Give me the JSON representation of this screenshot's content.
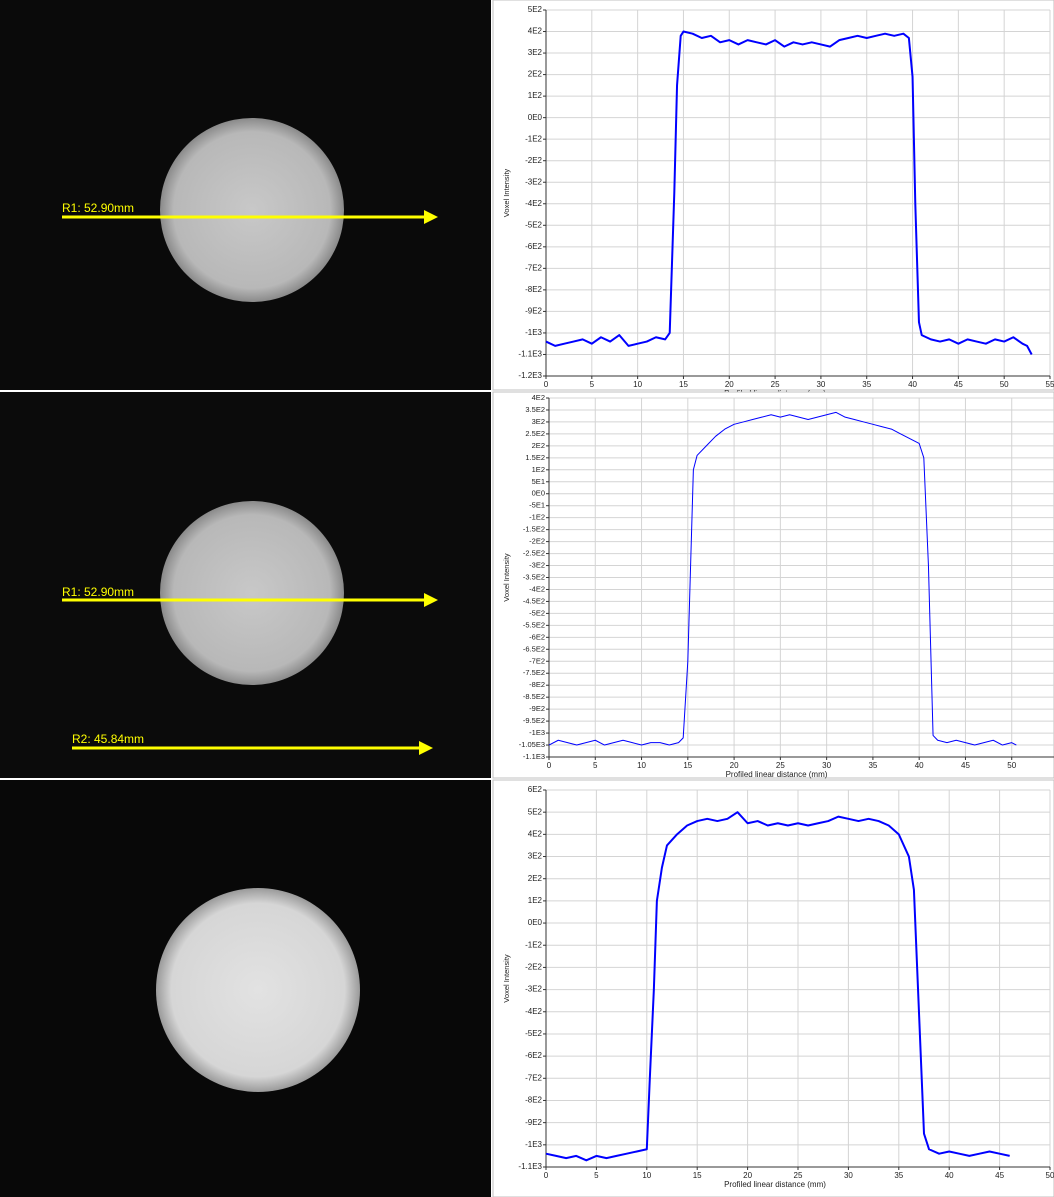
{
  "images": [
    {
      "label": "R1: 52.90mm"
    },
    {
      "label": "R1: 52.90mm"
    },
    {
      "label": "R2: 45.84mm"
    }
  ],
  "chart_data": [
    {
      "type": "line",
      "x_label": "Profiled linear distance (mm)",
      "y_label": "Voxel Intensity",
      "color": "#0000ff",
      "grid": true,
      "xlim": [
        0,
        55
      ],
      "ylim": [
        -1200,
        500
      ],
      "xticks": [
        0,
        5,
        10,
        15,
        20,
        25,
        30,
        35,
        40,
        45,
        50,
        55
      ],
      "yticks": [
        {
          "value": 500,
          "label": "5E2"
        },
        {
          "value": 400,
          "label": "4E2"
        },
        {
          "value": 300,
          "label": "3E2"
        },
        {
          "value": 200,
          "label": "2E2"
        },
        {
          "value": 100,
          "label": "1E2"
        },
        {
          "value": 0,
          "label": "0E0"
        },
        {
          "value": -100,
          "label": "-1E2"
        },
        {
          "value": -200,
          "label": "-2E2"
        },
        {
          "value": -300,
          "label": "-3E2"
        },
        {
          "value": -400,
          "label": "-4E2"
        },
        {
          "value": -500,
          "label": "-5E2"
        },
        {
          "value": -600,
          "label": "-6E2"
        },
        {
          "value": -700,
          "label": "-7E2"
        },
        {
          "value": -800,
          "label": "-8E2"
        },
        {
          "value": -900,
          "label": "-9E2"
        },
        {
          "value": -1000,
          "label": "-1E3"
        },
        {
          "value": -1100,
          "label": "-1.1E3"
        },
        {
          "value": -1200,
          "label": "-1.2E3"
        }
      ],
      "x": [
        0,
        1,
        2,
        3,
        4,
        5,
        6,
        7,
        8,
        9,
        10,
        11,
        12,
        13,
        13.5,
        14,
        14.3,
        14.7,
        15,
        16,
        17,
        18,
        19,
        20,
        21,
        22,
        23,
        24,
        25,
        26,
        27,
        28,
        29,
        30,
        31,
        32,
        33,
        34,
        35,
        36,
        37,
        38,
        39,
        39.6,
        40,
        40.3,
        40.7,
        41,
        42,
        43,
        44,
        45,
        46,
        47,
        48,
        49,
        50,
        51,
        52,
        52.5,
        53
      ],
      "values": [
        -1040,
        -1060,
        -1050,
        -1040,
        -1030,
        -1050,
        -1020,
        -1040,
        -1010,
        -1060,
        -1050,
        -1040,
        -1020,
        -1030,
        -1000,
        -350,
        150,
        380,
        400,
        390,
        370,
        380,
        350,
        360,
        340,
        360,
        350,
        340,
        360,
        330,
        350,
        340,
        350,
        340,
        330,
        360,
        370,
        380,
        370,
        380,
        390,
        380,
        390,
        370,
        190,
        -400,
        -950,
        -1010,
        -1030,
        -1040,
        -1030,
        -1050,
        -1030,
        -1040,
        -1050,
        -1030,
        -1040,
        -1020,
        -1050,
        -1060,
        -1100
      ]
    },
    {
      "type": "line",
      "x_label": "Profiled linear distance (mm)",
      "y_label": "Voxel Intensity",
      "color": "#0000ff",
      "grid": true,
      "xlim": [
        0,
        55
      ],
      "ylim": [
        -1100,
        400
      ],
      "xticks": [
        0,
        5,
        10,
        15,
        20,
        25,
        30,
        35,
        40,
        45,
        50
      ],
      "yticks": [
        {
          "value": 400,
          "label": "4E2"
        },
        {
          "value": 350,
          "label": "3.5E2"
        },
        {
          "value": 300,
          "label": "3E2"
        },
        {
          "value": 250,
          "label": "2.5E2"
        },
        {
          "value": 200,
          "label": "2E2"
        },
        {
          "value": 150,
          "label": "1.5E2"
        },
        {
          "value": 100,
          "label": "1E2"
        },
        {
          "value": 50,
          "label": "5E1"
        },
        {
          "value": 0,
          "label": "0E0"
        },
        {
          "value": -50,
          "label": "-5E1"
        },
        {
          "value": -100,
          "label": "-1E2"
        },
        {
          "value": -150,
          "label": "-1.5E2"
        },
        {
          "value": -200,
          "label": "-2E2"
        },
        {
          "value": -250,
          "label": "-2.5E2"
        },
        {
          "value": -300,
          "label": "-3E2"
        },
        {
          "value": -350,
          "label": "-3.5E2"
        },
        {
          "value": -400,
          "label": "-4E2"
        },
        {
          "value": -450,
          "label": "-4.5E2"
        },
        {
          "value": -500,
          "label": "-5E2"
        },
        {
          "value": -550,
          "label": "-5.5E2"
        },
        {
          "value": -600,
          "label": "-6E2"
        },
        {
          "value": -650,
          "label": "-6.5E2"
        },
        {
          "value": -700,
          "label": "-7E2"
        },
        {
          "value": -750,
          "label": "-7.5E2"
        },
        {
          "value": -800,
          "label": "-8E2"
        },
        {
          "value": -850,
          "label": "-8.5E2"
        },
        {
          "value": -900,
          "label": "-9E2"
        },
        {
          "value": -950,
          "label": "-9.5E2"
        },
        {
          "value": -1000,
          "label": "-1E3"
        },
        {
          "value": -1050,
          "label": "-1.05E3"
        },
        {
          "value": -1100,
          "label": "-1.1E3"
        }
      ],
      "x": [
        0,
        1,
        2,
        3,
        4,
        5,
        6,
        7,
        8,
        9,
        10,
        11,
        12,
        13,
        14,
        14.5,
        15,
        15.3,
        15.6,
        16,
        17,
        18,
        19,
        20,
        21,
        22,
        23,
        24,
        25,
        26,
        27,
        28,
        29,
        30,
        31,
        32,
        33,
        34,
        35,
        36,
        37,
        38,
        39,
        40,
        40.5,
        41,
        41.5,
        42,
        43,
        44,
        45,
        46,
        47,
        48,
        49,
        50,
        50.5
      ],
      "values": [
        -1050,
        -1030,
        -1040,
        -1050,
        -1040,
        -1030,
        -1050,
        -1040,
        -1030,
        -1040,
        -1050,
        -1040,
        -1040,
        -1050,
        -1040,
        -1020,
        -700,
        -300,
        100,
        160,
        200,
        240,
        270,
        290,
        300,
        310,
        320,
        330,
        320,
        330,
        320,
        310,
        320,
        330,
        340,
        320,
        310,
        300,
        290,
        280,
        270,
        250,
        230,
        210,
        150,
        -300,
        -1010,
        -1030,
        -1040,
        -1030,
        -1040,
        -1050,
        -1040,
        -1030,
        -1050,
        -1040,
        -1050
      ]
    },
    {
      "type": "line",
      "x_label": "Profiled linear distance (mm)",
      "y_label": "Voxel Intensity",
      "color": "#0000ff",
      "grid": true,
      "xlim": [
        0,
        50
      ],
      "ylim": [
        -1100,
        600
      ],
      "xticks": [
        0,
        5,
        10,
        15,
        20,
        25,
        30,
        35,
        40,
        45,
        50
      ],
      "yticks": [
        {
          "value": 600,
          "label": "6E2"
        },
        {
          "value": 500,
          "label": "5E2"
        },
        {
          "value": 400,
          "label": "4E2"
        },
        {
          "value": 300,
          "label": "3E2"
        },
        {
          "value": 200,
          "label": "2E2"
        },
        {
          "value": 100,
          "label": "1E2"
        },
        {
          "value": 0,
          "label": "0E0"
        },
        {
          "value": -100,
          "label": "-1E2"
        },
        {
          "value": -200,
          "label": "-2E2"
        },
        {
          "value": -300,
          "label": "-3E2"
        },
        {
          "value": -400,
          "label": "-4E2"
        },
        {
          "value": -500,
          "label": "-5E2"
        },
        {
          "value": -600,
          "label": "-6E2"
        },
        {
          "value": -700,
          "label": "-7E2"
        },
        {
          "value": -800,
          "label": "-8E2"
        },
        {
          "value": -900,
          "label": "-9E2"
        },
        {
          "value": -1000,
          "label": "-1E3"
        },
        {
          "value": -1100,
          "label": "-1.1E3"
        }
      ],
      "x": [
        0,
        1,
        2,
        3,
        4,
        5,
        6,
        7,
        8,
        9,
        10,
        10.3,
        10.7,
        11,
        11.5,
        12,
        13,
        14,
        15,
        16,
        17,
        18,
        19,
        20,
        21,
        22,
        23,
        24,
        25,
        26,
        27,
        28,
        29,
        30,
        31,
        32,
        33,
        34,
        35,
        36,
        36.5,
        37,
        37.5,
        38,
        39,
        40,
        41,
        42,
        43,
        44,
        45,
        46
      ],
      "values": [
        -1040,
        -1050,
        -1060,
        -1050,
        -1070,
        -1050,
        -1060,
        -1050,
        -1040,
        -1030,
        -1020,
        -700,
        -300,
        100,
        250,
        350,
        400,
        440,
        460,
        470,
        460,
        470,
        500,
        450,
        460,
        440,
        450,
        440,
        450,
        440,
        450,
        460,
        480,
        470,
        460,
        470,
        460,
        440,
        400,
        300,
        150,
        -400,
        -950,
        -1020,
        -1040,
        -1030,
        -1040,
        -1050,
        -1040,
        -1030,
        -1040,
        -1050
      ]
    }
  ]
}
